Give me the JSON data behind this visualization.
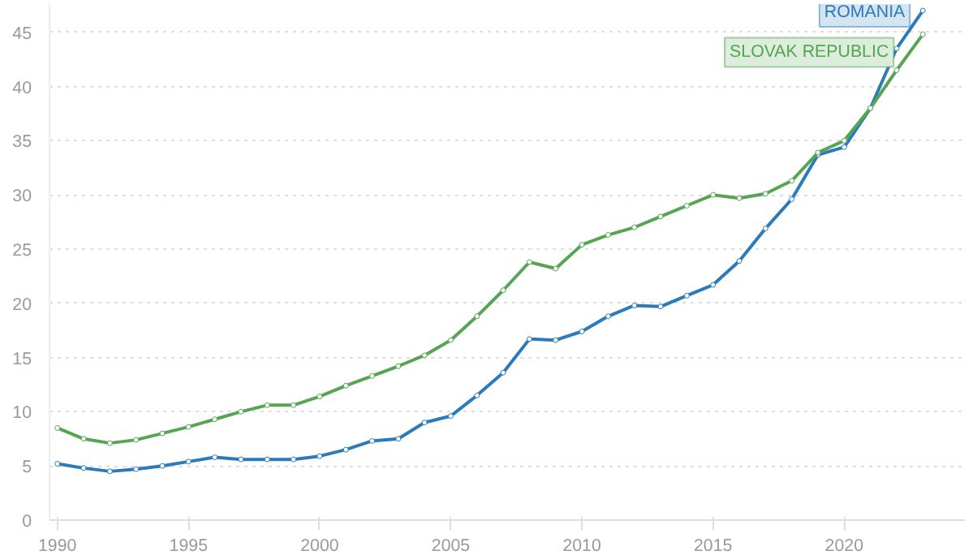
{
  "chart_data": {
    "type": "line",
    "x": [
      1990,
      1991,
      1992,
      1993,
      1994,
      1995,
      1996,
      1997,
      1998,
      1999,
      2000,
      2001,
      2002,
      2003,
      2004,
      2005,
      2006,
      2007,
      2008,
      2009,
      2010,
      2011,
      2012,
      2013,
      2014,
      2015,
      2016,
      2017,
      2018,
      2019,
      2020,
      2021,
      2022,
      2023
    ],
    "series": [
      {
        "name": "ROMANIA",
        "color": "#2b7bba",
        "values": [
          5.2,
          4.8,
          4.5,
          4.7,
          5.0,
          5.4,
          5.8,
          5.6,
          5.6,
          5.6,
          5.9,
          6.5,
          7.3,
          7.5,
          9.0,
          9.6,
          11.5,
          13.6,
          16.7,
          16.6,
          17.4,
          18.8,
          19.8,
          19.7,
          20.7,
          21.7,
          23.9,
          26.9,
          29.6,
          33.7,
          34.4,
          38.0,
          43.5,
          47.0
        ]
      },
      {
        "name": "SLOVAK REPUBLIC",
        "color": "#55a553",
        "values": [
          8.5,
          7.5,
          7.1,
          7.4,
          8.0,
          8.6,
          9.3,
          10.0,
          10.6,
          10.6,
          11.4,
          12.4,
          13.3,
          14.2,
          15.2,
          16.6,
          18.8,
          21.2,
          23.8,
          23.2,
          25.4,
          26.3,
          27.0,
          28.0,
          29.0,
          30.0,
          29.7,
          30.1,
          31.3,
          33.9,
          35.0,
          38.0,
          41.5,
          44.8
        ]
      }
    ],
    "xlim": [
      1989.7,
      2024.6
    ],
    "ylim": [
      0,
      47.6
    ],
    "xticks": [
      1990,
      1995,
      2000,
      2005,
      2010,
      2015,
      2020
    ],
    "yticks": [
      0,
      5,
      10,
      15,
      20,
      25,
      30,
      35,
      40,
      45
    ],
    "grid": "y",
    "marker": "circle",
    "line_style": "solid"
  }
}
